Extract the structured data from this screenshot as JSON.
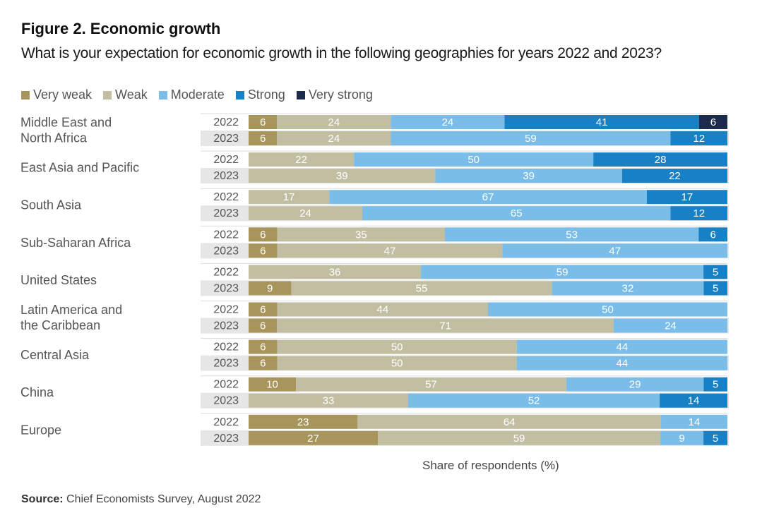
{
  "header": {
    "title": "Figure 2. Economic growth",
    "subtitle": "What is your expectation for economic growth in the following geographies for years 2022 and 2023?"
  },
  "footer": {
    "source_label": "Source:",
    "source_text": " Chief Economists Survey, August 2022"
  },
  "chart_data": {
    "type": "bar",
    "orientation": "horizontal-stacked-100",
    "title": "Figure 2. Economic growth",
    "subtitle": "What is your expectation for economic growth in the following geographies for years 2022 and 2023?",
    "xlabel": "Share of respondents (%)",
    "ylabel": "",
    "xlim": [
      0,
      100
    ],
    "grid": false,
    "legend_position": "top-left",
    "series_names": [
      "Very weak",
      "Weak",
      "Moderate",
      "Strong",
      "Very strong"
    ],
    "colors": {
      "Very weak": "#a8955c",
      "Weak": "#c2bea2",
      "Moderate": "#7abde8",
      "Strong": "#1880c4",
      "Very strong": "#1c2b4c"
    },
    "groups": [
      {
        "label": "Middle East and\nNorth Africa",
        "rows": [
          {
            "year": "2022",
            "values": [
              6,
              24,
              24,
              41,
              6
            ]
          },
          {
            "year": "2023",
            "values": [
              6,
              24,
              59,
              12,
              0
            ]
          }
        ]
      },
      {
        "label": "East Asia and Pacific",
        "rows": [
          {
            "year": "2022",
            "values": [
              0,
              22,
              50,
              28,
              0
            ]
          },
          {
            "year": "2023",
            "values": [
              0,
              39,
              39,
              22,
              0
            ]
          }
        ]
      },
      {
        "label": "South Asia",
        "rows": [
          {
            "year": "2022",
            "values": [
              0,
              17,
              67,
              17,
              0
            ]
          },
          {
            "year": "2023",
            "values": [
              0,
              24,
              65,
              12,
              0
            ]
          }
        ]
      },
      {
        "label": "Sub-Saharan Africa",
        "rows": [
          {
            "year": "2022",
            "values": [
              6,
              35,
              53,
              6,
              0
            ]
          },
          {
            "year": "2023",
            "values": [
              6,
              47,
              47,
              0,
              0
            ]
          }
        ]
      },
      {
        "label": "United States",
        "rows": [
          {
            "year": "2022",
            "values": [
              0,
              36,
              59,
              5,
              0
            ]
          },
          {
            "year": "2023",
            "values": [
              9,
              55,
              32,
              5,
              0
            ]
          }
        ]
      },
      {
        "label": "Latin America and\nthe Caribbean",
        "rows": [
          {
            "year": "2022",
            "values": [
              6,
              44,
              50,
              0,
              0
            ]
          },
          {
            "year": "2023",
            "values": [
              6,
              71,
              24,
              0,
              0
            ]
          }
        ]
      },
      {
        "label": "Central Asia",
        "rows": [
          {
            "year": "2022",
            "values": [
              6,
              50,
              44,
              0,
              0
            ]
          },
          {
            "year": "2023",
            "values": [
              6,
              50,
              44,
              0,
              0
            ]
          }
        ]
      },
      {
        "label": "China",
        "rows": [
          {
            "year": "2022",
            "values": [
              10,
              57,
              29,
              5,
              0
            ]
          },
          {
            "year": "2023",
            "values": [
              0,
              33,
              52,
              14,
              0
            ]
          }
        ]
      },
      {
        "label": "Europe",
        "rows": [
          {
            "year": "2022",
            "values": [
              23,
              64,
              14,
              0,
              0
            ]
          },
          {
            "year": "2023",
            "values": [
              27,
              59,
              9,
              5,
              0
            ]
          }
        ]
      }
    ]
  }
}
